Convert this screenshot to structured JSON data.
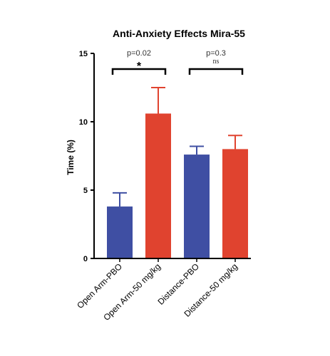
{
  "chart_data": {
    "type": "bar",
    "title": "Anti-Anxiety Effects Mira-55",
    "ylabel": "Time (%)",
    "xlabel": "",
    "ylim": [
      0,
      15
    ],
    "yticks": [
      0,
      5,
      10,
      15
    ],
    "categories": [
      "Open Arm-PBO",
      "Open Arm-50 mg/kg",
      "Distance-PBO",
      "Distance-50 mg/kg"
    ],
    "values": [
      3.8,
      10.6,
      7.6,
      8.0
    ],
    "errors": [
      1.0,
      1.9,
      0.6,
      1.0
    ],
    "colors": [
      "#3f4fa3",
      "#e0432f",
      "#3f4fa3",
      "#e0432f"
    ],
    "grid": false,
    "annotations": [
      {
        "from": 0,
        "to": 1,
        "pvalue": "p=0.02",
        "significance": "*"
      },
      {
        "from": 2,
        "to": 3,
        "pvalue": "p=0.3",
        "significance": "ns"
      }
    ]
  }
}
